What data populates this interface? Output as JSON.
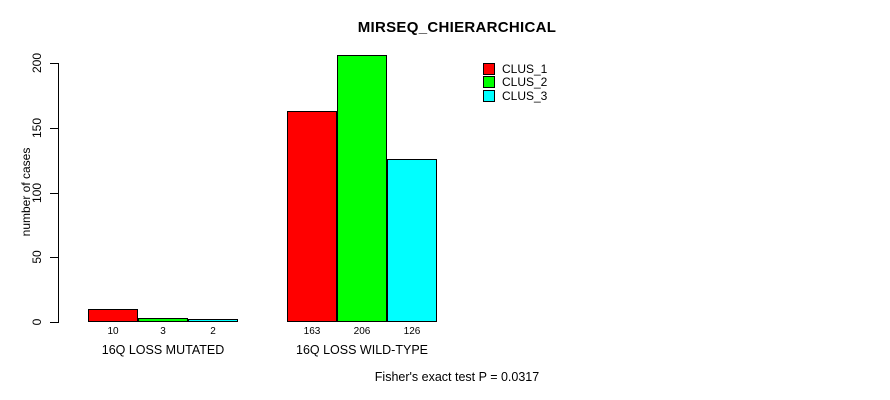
{
  "title": "MIRSEQ_CHIERARCHICAL",
  "footer": "Fisher's exact test P = 0.0317",
  "colors": {
    "clus_1": "#FF0000",
    "clus_2": "#00FF00",
    "clus_3": "#00FFFF",
    "axis": "#000000",
    "background": "#FFFFFF"
  },
  "chart_data": {
    "type": "bar",
    "title": "MIRSEQ_CHIERARCHICAL",
    "xlabel": "",
    "ylabel": "number of cases",
    "ylim": [
      0,
      200
    ],
    "yticks": [
      0,
      50,
      100,
      150,
      200
    ],
    "grid": false,
    "legend_position": "top-right",
    "categories": [
      "16Q LOSS MUTATED",
      "16Q LOSS WILD-TYPE"
    ],
    "series": [
      {
        "name": "CLUS_1",
        "color": "#FF0000",
        "values": [
          10,
          163
        ]
      },
      {
        "name": "CLUS_2",
        "color": "#00FF00",
        "values": [
          3,
          206
        ]
      },
      {
        "name": "CLUS_3",
        "color": "#00FFFF",
        "values": [
          2,
          126
        ]
      }
    ],
    "bar_labels": [
      [
        "10",
        "3",
        "2"
      ],
      [
        "163",
        "206",
        "126"
      ]
    ],
    "annotation": "Fisher's exact test P = 0.0317"
  }
}
